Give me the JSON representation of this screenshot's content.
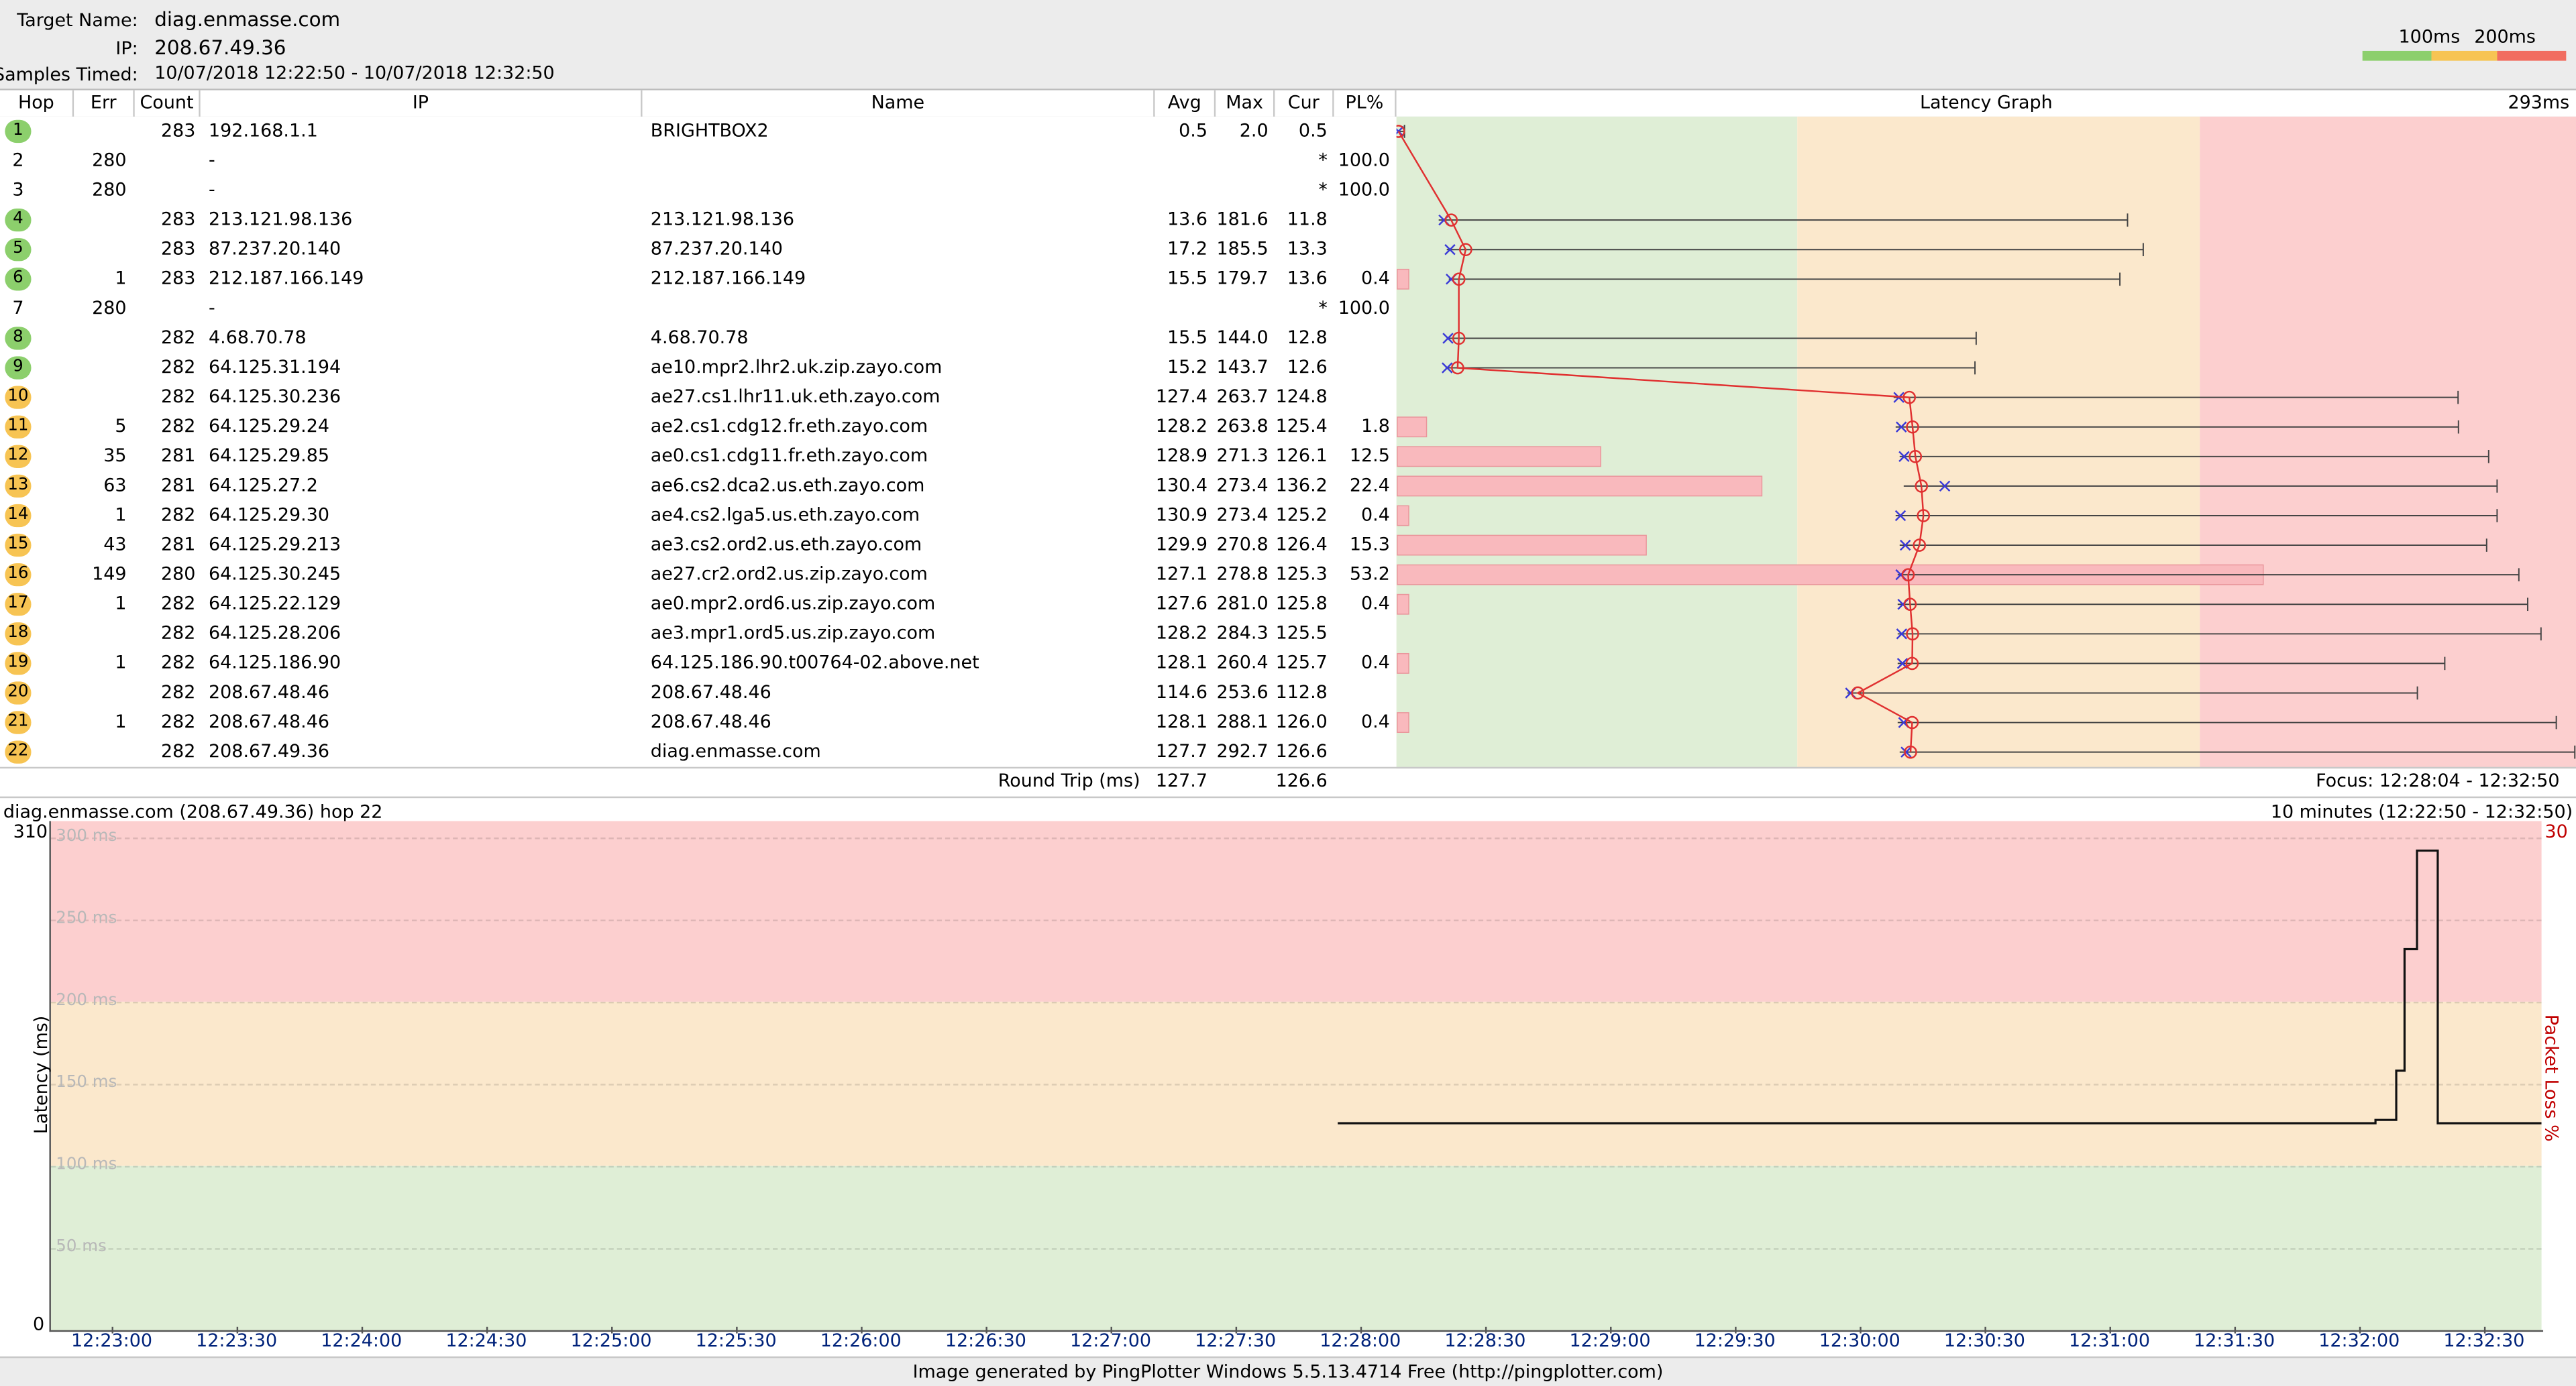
{
  "header": {
    "target_label": "Target Name:",
    "target_value": "diag.enmasse.com",
    "ip_label": "IP:",
    "ip_value": "208.67.49.36",
    "samples_label": "Samples Timed:",
    "samples_value": "10/07/2018 12:22:50 - 10/07/2018 12:32:50",
    "legend": {
      "l1": "100ms",
      "l2": "200ms"
    }
  },
  "columns": {
    "hop": "Hop",
    "err": "Err",
    "count": "Count",
    "ip": "IP",
    "name": "Name",
    "avg": "Avg",
    "max": "Max",
    "cur": "Cur",
    "pl": "PL%",
    "graph": "Latency Graph",
    "scale": "293ms"
  },
  "colors": {
    "green": "#dfeed6",
    "orange": "#fbe8cc",
    "red": "#fccfcf",
    "line": "#e03030",
    "badge_green": "#8ccf6c",
    "badge_orange": "#f7c453"
  },
  "hops": [
    {
      "hop": "1",
      "err": "",
      "count": "283",
      "ip": "192.168.1.1",
      "name": "BRIGHTBOX2",
      "avg": "0.5",
      "max": "2.0",
      "cur": "0.5",
      "pl": "",
      "badge": "green",
      "min": 0.3,
      "lat_avg": 0.5,
      "lat_max": 2.0,
      "lat_cur": 0.5,
      "pl_value": 0
    },
    {
      "hop": "2",
      "err": "280",
      "count": "",
      "ip": "-",
      "name": "",
      "avg": "",
      "max": "",
      "cur": "*",
      "pl": "100.0",
      "badge": "none"
    },
    {
      "hop": "3",
      "err": "280",
      "count": "",
      "ip": "-",
      "name": "",
      "avg": "",
      "max": "",
      "cur": "*",
      "pl": "100.0",
      "badge": "none"
    },
    {
      "hop": "4",
      "err": "",
      "count": "283",
      "ip": "213.121.98.136",
      "name": "213.121.98.136",
      "avg": "13.6",
      "max": "181.6",
      "cur": "11.8",
      "pl": "",
      "badge": "green",
      "min": 10.5,
      "lat_avg": 13.6,
      "lat_max": 181.6,
      "lat_cur": 11.8,
      "pl_value": 0
    },
    {
      "hop": "5",
      "err": "",
      "count": "283",
      "ip": "87.237.20.140",
      "name": "87.237.20.140",
      "avg": "17.2",
      "max": "185.5",
      "cur": "13.3",
      "pl": "",
      "badge": "green",
      "min": 12.5,
      "lat_avg": 17.2,
      "lat_max": 185.5,
      "lat_cur": 13.3,
      "pl_value": 0
    },
    {
      "hop": "6",
      "err": "1",
      "count": "283",
      "ip": "212.187.166.149",
      "name": "212.187.166.149",
      "avg": "15.5",
      "max": "179.7",
      "cur": "13.6",
      "pl": "0.4",
      "badge": "green",
      "min": 13.0,
      "lat_avg": 15.5,
      "lat_max": 179.7,
      "lat_cur": 13.6,
      "pl_value": 0.4
    },
    {
      "hop": "7",
      "err": "280",
      "count": "",
      "ip": "-",
      "name": "",
      "avg": "",
      "max": "",
      "cur": "*",
      "pl": "100.0",
      "badge": "none"
    },
    {
      "hop": "8",
      "err": "",
      "count": "282",
      "ip": "4.68.70.78",
      "name": "4.68.70.78",
      "avg": "15.5",
      "max": "144.0",
      "cur": "12.8",
      "pl": "",
      "badge": "green",
      "min": 12.5,
      "lat_avg": 15.5,
      "lat_max": 144.0,
      "lat_cur": 12.8,
      "pl_value": 0
    },
    {
      "hop": "9",
      "err": "",
      "count": "282",
      "ip": "64.125.31.194",
      "name": "ae10.mpr2.lhr2.uk.zip.zayo.com",
      "avg": "15.2",
      "max": "143.7",
      "cur": "12.6",
      "pl": "",
      "badge": "green",
      "min": 12.2,
      "lat_avg": 15.2,
      "lat_max": 143.7,
      "lat_cur": 12.6,
      "pl_value": 0
    },
    {
      "hop": "10",
      "err": "",
      "count": "282",
      "ip": "64.125.30.236",
      "name": "ae27.cs1.lhr11.uk.eth.zayo.com",
      "avg": "127.4",
      "max": "263.7",
      "cur": "124.8",
      "pl": "",
      "badge": "orange",
      "min": 123.5,
      "lat_avg": 127.4,
      "lat_max": 263.7,
      "lat_cur": 124.8,
      "pl_value": 0
    },
    {
      "hop": "11",
      "err": "5",
      "count": "282",
      "ip": "64.125.29.24",
      "name": "ae2.cs1.cdg12.fr.eth.zayo.com",
      "avg": "128.2",
      "max": "263.8",
      "cur": "125.4",
      "pl": "1.8",
      "badge": "orange",
      "min": 124.0,
      "lat_avg": 128.2,
      "lat_max": 263.8,
      "lat_cur": 125.4,
      "pl_value": 1.8
    },
    {
      "hop": "12",
      "err": "35",
      "count": "281",
      "ip": "64.125.29.85",
      "name": "ae0.cs1.cdg11.fr.eth.zayo.com",
      "avg": "128.9",
      "max": "271.3",
      "cur": "126.1",
      "pl": "12.5",
      "badge": "orange",
      "min": 125.0,
      "lat_avg": 128.9,
      "lat_max": 271.3,
      "lat_cur": 126.1,
      "pl_value": 12.5
    },
    {
      "hop": "13",
      "err": "63",
      "count": "281",
      "ip": "64.125.27.2",
      "name": "ae6.cs2.dca2.us.eth.zayo.com",
      "avg": "130.4",
      "max": "273.4",
      "cur": "136.2",
      "pl": "22.4",
      "badge": "orange",
      "min": 126.0,
      "lat_avg": 130.4,
      "lat_max": 273.4,
      "lat_cur": 136.2,
      "pl_value": 22.4
    },
    {
      "hop": "14",
      "err": "1",
      "count": "282",
      "ip": "64.125.29.30",
      "name": "ae4.cs2.lga5.us.eth.zayo.com",
      "avg": "130.9",
      "max": "273.4",
      "cur": "125.2",
      "pl": "0.4",
      "badge": "orange",
      "min": 124.0,
      "lat_avg": 130.9,
      "lat_max": 273.4,
      "lat_cur": 125.2,
      "pl_value": 0.4
    },
    {
      "hop": "15",
      "err": "43",
      "count": "281",
      "ip": "64.125.29.213",
      "name": "ae3.cs2.ord2.us.eth.zayo.com",
      "avg": "129.9",
      "max": "270.8",
      "cur": "126.4",
      "pl": "15.3",
      "badge": "orange",
      "min": 125.0,
      "lat_avg": 129.9,
      "lat_max": 270.8,
      "lat_cur": 126.4,
      "pl_value": 15.3
    },
    {
      "hop": "16",
      "err": "149",
      "count": "280",
      "ip": "64.125.30.245",
      "name": "ae27.cr2.ord2.us.zip.zayo.com",
      "avg": "127.1",
      "max": "278.8",
      "cur": "125.3",
      "pl": "53.2",
      "badge": "orange",
      "min": 124.5,
      "lat_avg": 127.1,
      "lat_max": 278.8,
      "lat_cur": 125.3,
      "pl_value": 53.2
    },
    {
      "hop": "17",
      "err": "1",
      "count": "282",
      "ip": "64.125.22.129",
      "name": "ae0.mpr2.ord6.us.zip.zayo.com",
      "avg": "127.6",
      "max": "281.0",
      "cur": "125.8",
      "pl": "0.4",
      "badge": "orange",
      "min": 124.5,
      "lat_avg": 127.6,
      "lat_max": 281.0,
      "lat_cur": 125.8,
      "pl_value": 0.4
    },
    {
      "hop": "18",
      "err": "",
      "count": "282",
      "ip": "64.125.28.206",
      "name": "ae3.mpr1.ord5.us.zip.zayo.com",
      "avg": "128.2",
      "max": "284.3",
      "cur": "125.5",
      "pl": "",
      "badge": "orange",
      "min": 124.5,
      "lat_avg": 128.2,
      "lat_max": 284.3,
      "lat_cur": 125.5,
      "pl_value": 0
    },
    {
      "hop": "19",
      "err": "1",
      "count": "282",
      "ip": "64.125.186.90",
      "name": "64.125.186.90.t00764-02.above.net",
      "avg": "128.1",
      "max": "260.4",
      "cur": "125.7",
      "pl": "0.4",
      "badge": "orange",
      "min": 124.5,
      "lat_avg": 128.1,
      "lat_max": 260.4,
      "lat_cur": 125.7,
      "pl_value": 0.4
    },
    {
      "hop": "20",
      "err": "",
      "count": "282",
      "ip": "208.67.48.46",
      "name": "208.67.48.46",
      "avg": "114.6",
      "max": "253.6",
      "cur": "112.8",
      "pl": "",
      "badge": "orange",
      "min": 112.0,
      "lat_avg": 114.6,
      "lat_max": 253.6,
      "lat_cur": 112.8,
      "pl_value": 0
    },
    {
      "hop": "21",
      "err": "1",
      "count": "282",
      "ip": "208.67.48.46",
      "name": "208.67.48.46",
      "avg": "128.1",
      "max": "288.1",
      "cur": "126.0",
      "pl": "0.4",
      "badge": "orange",
      "min": 124.5,
      "lat_avg": 128.1,
      "lat_max": 288.1,
      "lat_cur": 126.0,
      "pl_value": 0.4
    },
    {
      "hop": "22",
      "err": "",
      "count": "282",
      "ip": "208.67.49.36",
      "name": "diag.enmasse.com",
      "avg": "127.7",
      "max": "292.7",
      "cur": "126.6",
      "pl": "",
      "badge": "orange",
      "min": 125.0,
      "lat_avg": 127.7,
      "lat_max": 292.7,
      "lat_cur": 126.6,
      "pl_value": 0
    }
  ],
  "round_trip": {
    "label": "Round Trip (ms)",
    "avg": "127.7",
    "cur": "126.6",
    "focus": "Focus: 12:28:04 - 12:32:50"
  },
  "timeline": {
    "title": "diag.enmasse.com (208.67.49.36) hop 22",
    "range": "10 minutes (12:22:50 - 12:32:50)",
    "ylabel": "Latency (ms)",
    "y2label": "Packet Loss %",
    "ymax_label": "310",
    "ymin_label": "0",
    "y2max_label": "30",
    "gridlines": [
      "300 ms",
      "250 ms",
      "200 ms",
      "150 ms",
      "100 ms",
      "50 ms"
    ],
    "ticks": [
      "12:23:00",
      "12:23:30",
      "12:24:00",
      "12:24:30",
      "12:25:00",
      "12:25:30",
      "12:26:00",
      "12:26:30",
      "12:27:00",
      "12:27:30",
      "12:28:00",
      "12:28:30",
      "12:29:00",
      "12:29:30",
      "12:30:00",
      "12:30:30",
      "12:31:00",
      "12:31:30",
      "12:32:00",
      "12:32:30"
    ]
  },
  "chart_data": {
    "type": "line",
    "title": "diag.enmasse.com (208.67.49.36) hop 22",
    "xlabel": "",
    "ylabel": "Latency (ms)",
    "ylim": [
      0,
      310
    ],
    "x": [
      "12:28:00",
      "12:28:30",
      "12:29:00",
      "12:29:30",
      "12:30:00",
      "12:30:30",
      "12:31:00",
      "12:31:30",
      "12:32:00",
      "12:32:10",
      "12:32:15",
      "12:32:17",
      "12:32:20",
      "12:32:25",
      "12:32:30",
      "12:32:50"
    ],
    "series": [
      {
        "name": "",
        "values": [
          126,
          126,
          126,
          126,
          126,
          126,
          126,
          126,
          126,
          128,
          158,
          232,
          292,
          126,
          126,
          126
        ]
      }
    ],
    "grid": true
  },
  "footer": {
    "text": "Image generated by PingPlotter Windows 5.5.13.4714 Free (http://pingplotter.com)"
  }
}
